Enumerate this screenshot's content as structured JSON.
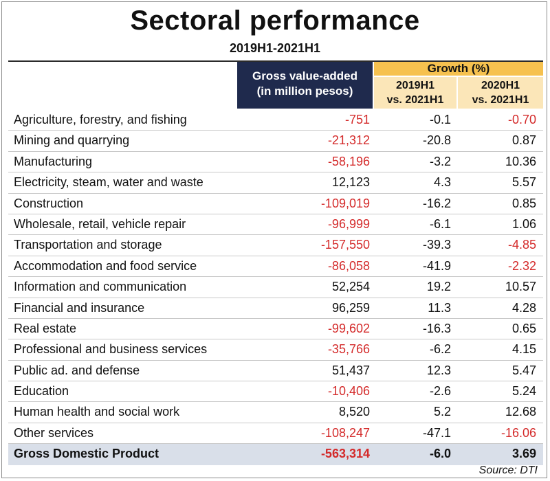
{
  "title": "Sectoral performance",
  "subtitle": "2019H1-2021H1",
  "source": "Source: DTI",
  "columns": {
    "gva_line1": "Gross value-added",
    "gva_line2": "(in million pesos)",
    "growth": "Growth (%)",
    "g2019_line1": "2019H1",
    "g2019_line2": "vs. 2021H1",
    "g2020_line1": "2020H1",
    "g2020_line2": "vs. 2021H1"
  },
  "colors": {
    "negative": "#d42a2a",
    "header_navy": "#1f2a4d",
    "header_gold": "#f6c14f",
    "header_light_gold": "#fbe6b8",
    "total_row": "#d9dfe9"
  },
  "chart_data": {
    "type": "table",
    "title": "Sectoral performance",
    "subtitle": "2019H1-2021H1",
    "headers": [
      "",
      "Gross value-added (in million pesos)",
      "Growth (%) 2019H1 vs. 2021H1",
      "Growth (%) 2020H1 vs. 2021H1"
    ],
    "rows": [
      {
        "sector": "Agriculture, forestry, and fishing",
        "gva": "-751",
        "g2019": "-0.1",
        "g2020": "-0.70"
      },
      {
        "sector": "Mining and quarrying",
        "gva": "-21,312",
        "g2019": "-20.8",
        "g2020": "0.87"
      },
      {
        "sector": "Manufacturing",
        "gva": "-58,196",
        "g2019": "-3.2",
        "g2020": "10.36"
      },
      {
        "sector": "Electricity, steam, water and waste",
        "gva": "12,123",
        "g2019": "4.3",
        "g2020": "5.57"
      },
      {
        "sector": "Construction",
        "gva": "-109,019",
        "g2019": "-16.2",
        "g2020": "0.85"
      },
      {
        "sector": "Wholesale, retail, vehicle repair",
        "gva": "-96,999",
        "g2019": "-6.1",
        "g2020": "1.06"
      },
      {
        "sector": "Transportation and storage",
        "gva": "-157,550",
        "g2019": "-39.3",
        "g2020": "-4.85"
      },
      {
        "sector": "Accommodation and food service",
        "gva": "-86,058",
        "g2019": "-41.9",
        "g2020": "-2.32"
      },
      {
        "sector": "Information and communication",
        "gva": "52,254",
        "g2019": "19.2",
        "g2020": "10.57"
      },
      {
        "sector": "Financial and insurance",
        "gva": "96,259",
        "g2019": "11.3",
        "g2020": "4.28"
      },
      {
        "sector": "Real estate",
        "gva": "-99,602",
        "g2019": "-16.3",
        "g2020": "0.65"
      },
      {
        "sector": "Professional and business services",
        "gva": "-35,766",
        "g2019": "-6.2",
        "g2020": "4.15"
      },
      {
        "sector": "Public ad. and defense",
        "gva": "51,437",
        "g2019": "12.3",
        "g2020": "5.47"
      },
      {
        "sector": "Education",
        "gva": "-10,406",
        "g2019": "-2.6",
        "g2020": "5.24"
      },
      {
        "sector": "Human health and social work",
        "gva": "8,520",
        "g2019": "5.2",
        "g2020": "12.68"
      },
      {
        "sector": "Other services",
        "gva": "-108,247",
        "g2019": "-47.1",
        "g2020": "-16.06"
      }
    ],
    "total": {
      "sector": "Gross Domestic Product",
      "gva": "-563,314",
      "g2019": "-6.0",
      "g2020": "3.69"
    }
  }
}
